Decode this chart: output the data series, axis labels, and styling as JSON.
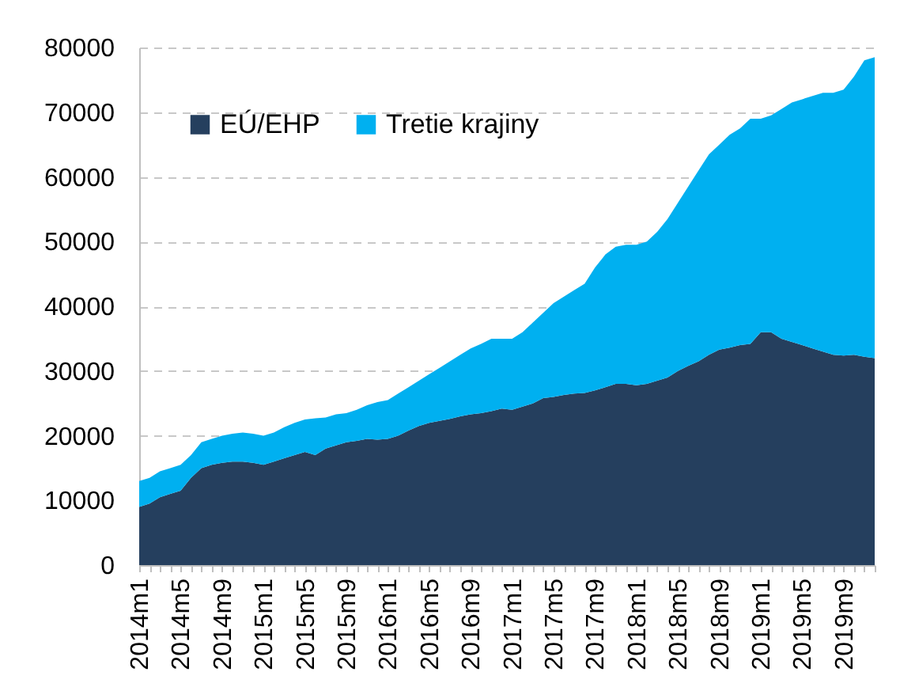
{
  "chart_data": {
    "type": "area",
    "stacked": true,
    "grid": "y",
    "legend": "top left",
    "categories": [
      "2014m1",
      null,
      null,
      null,
      "2014m5",
      null,
      null,
      null,
      "2014m9",
      null,
      null,
      null,
      "2015m1",
      null,
      null,
      null,
      "2015m5",
      null,
      null,
      null,
      "2015m9",
      null,
      null,
      null,
      "2016m1",
      null,
      null,
      null,
      "2016m5",
      null,
      null,
      null,
      "2016m9",
      null,
      null,
      null,
      "2017m1",
      null,
      null,
      null,
      "2017m5",
      null,
      null,
      null,
      "2017m9",
      null,
      null,
      null,
      "2018m1",
      null,
      null,
      null,
      "2018m5",
      null,
      null,
      null,
      "2018m9",
      null,
      null,
      null,
      "2019m1",
      null,
      null,
      null,
      "2019m5",
      null,
      null,
      null,
      "2019m9",
      null,
      null,
      null
    ],
    "ylim": [
      0,
      80000
    ],
    "yticks": [
      0,
      10000,
      20000,
      30000,
      40000,
      50000,
      60000,
      70000,
      80000
    ],
    "series": [
      {
        "name": "EÚ/EHP",
        "color": "#253f5e",
        "values": [
          9000,
          9500,
          10500,
          11000,
          11500,
          13500,
          15000,
          15500,
          15800,
          16000,
          16000,
          15800,
          15500,
          16000,
          16500,
          17000,
          17500,
          17000,
          18000,
          18500,
          19000,
          19200,
          19500,
          19400,
          19500,
          20000,
          20800,
          21500,
          22000,
          22300,
          22600,
          23000,
          23300,
          23500,
          23800,
          24200,
          24000,
          24500,
          25000,
          25800,
          26000,
          26300,
          26500,
          26600,
          27000,
          27500,
          28000,
          28000,
          27800,
          28000,
          28500,
          29000,
          30000,
          30800,
          31500,
          32500,
          33300,
          33600,
          34000,
          34200,
          36000,
          36000,
          35000,
          34500,
          34000,
          33500,
          33000,
          32500,
          32400,
          32500,
          32200,
          32000
        ]
      },
      {
        "name": "Tretie krajiny",
        "color": "#00b0f0",
        "values": [
          4000,
          4000,
          4000,
          4000,
          4000,
          3500,
          4000,
          4000,
          4200,
          4300,
          4500,
          4500,
          4500,
          4500,
          4800,
          5000,
          5000,
          5700,
          4800,
          4800,
          4500,
          4800,
          5200,
          5800,
          6000,
          6500,
          6700,
          7000,
          7500,
          8200,
          8900,
          9500,
          10200,
          10700,
          11200,
          10800,
          11000,
          11500,
          12500,
          13200,
          14500,
          15200,
          16000,
          16900,
          19000,
          20500,
          21200,
          21500,
          21700,
          22000,
          23000,
          24500,
          26000,
          27700,
          29500,
          31000,
          31700,
          32900,
          33500,
          34800,
          33000,
          33500,
          35500,
          37000,
          38000,
          39000,
          40000,
          40500,
          41100,
          43000,
          45800,
          46500
        ]
      }
    ]
  }
}
